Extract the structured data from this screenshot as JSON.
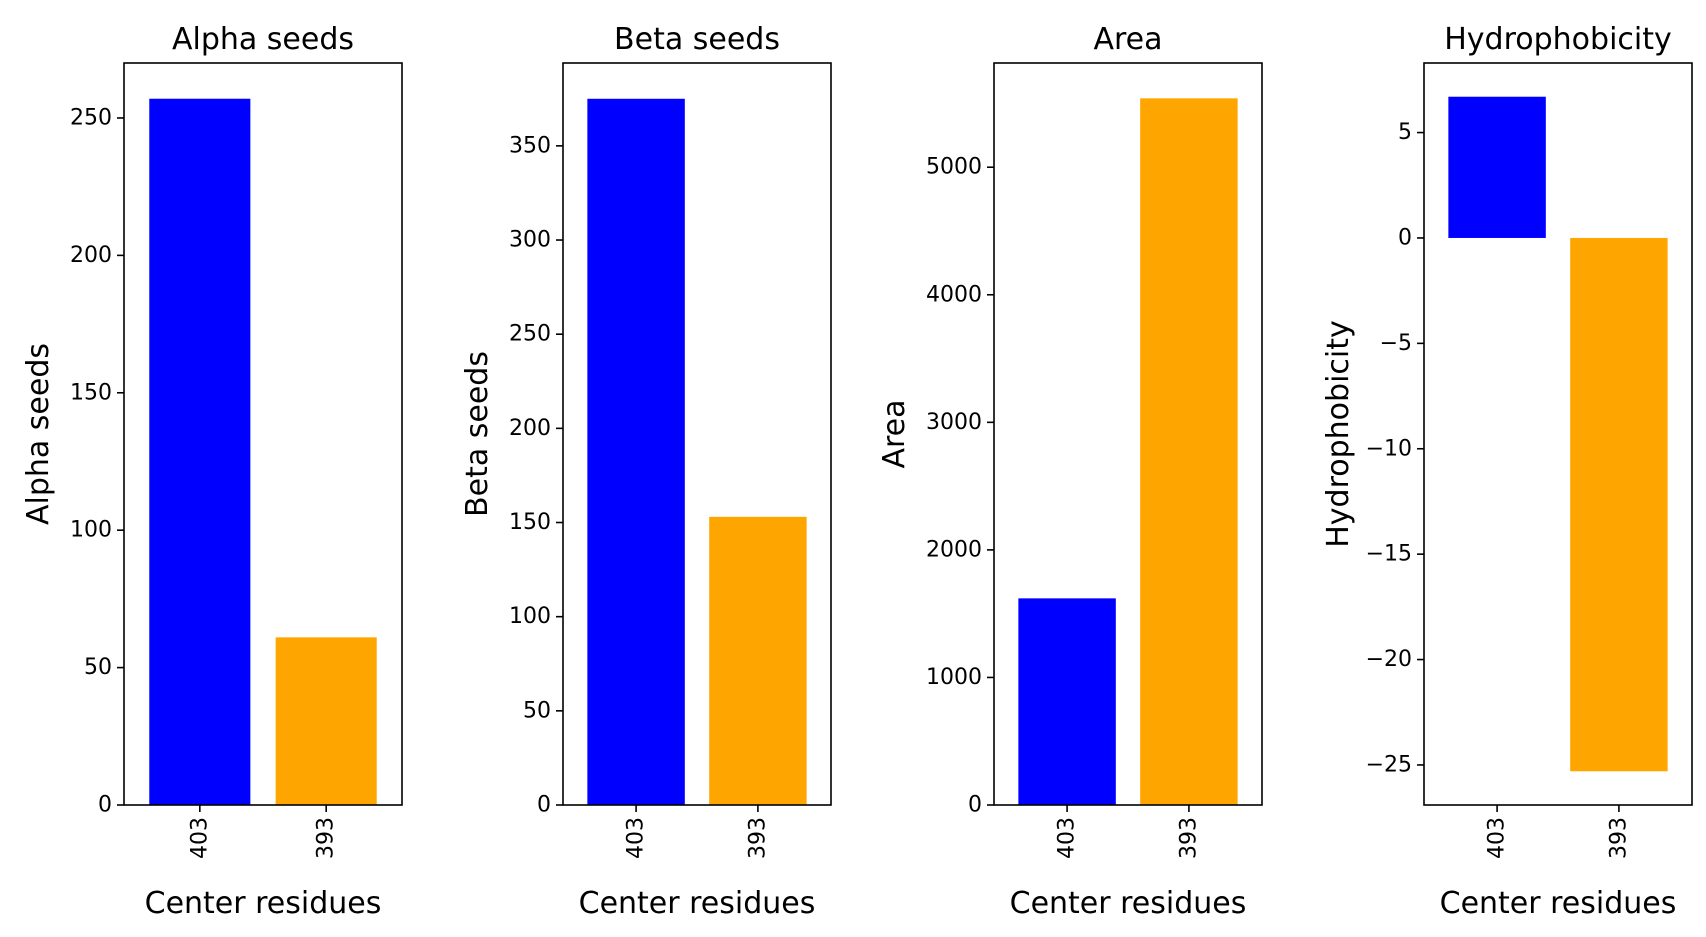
{
  "chart_data": [
    {
      "type": "bar",
      "title": "Alpha seeds",
      "xlabel": "Center residues",
      "ylabel": "Alpha seeds",
      "categories": [
        "403",
        "393"
      ],
      "values": [
        257,
        61
      ],
      "colors": [
        "#0000ff",
        "#ffa500"
      ],
      "ylim": [
        0,
        270
      ],
      "yticks": [
        0,
        50,
        100,
        150,
        200,
        250
      ],
      "ytick_labels": [
        "0",
        "50",
        "100",
        "150",
        "200",
        "250"
      ],
      "xtick_rotation": "vertical",
      "grid": false,
      "legend": "none"
    },
    {
      "type": "bar",
      "title": "Beta seeds",
      "xlabel": "Center residues",
      "ylabel": "Beta seeds",
      "categories": [
        "403",
        "393"
      ],
      "values": [
        375,
        153
      ],
      "colors": [
        "#0000ff",
        "#ffa500"
      ],
      "ylim": [
        0,
        394
      ],
      "yticks": [
        0,
        50,
        100,
        150,
        200,
        250,
        300,
        350
      ],
      "ytick_labels": [
        "0",
        "50",
        "100",
        "150",
        "200",
        "250",
        "300",
        "350"
      ],
      "xtick_rotation": "vertical",
      "grid": false,
      "legend": "none"
    },
    {
      "type": "bar",
      "title": "Area",
      "xlabel": "Center residues",
      "ylabel": "Area",
      "categories": [
        "403",
        "393"
      ],
      "values": [
        1620,
        5540
      ],
      "colors": [
        "#0000ff",
        "#ffa500"
      ],
      "ylim": [
        0,
        5817
      ],
      "yticks": [
        0,
        1000,
        2000,
        3000,
        4000,
        5000
      ],
      "ytick_labels": [
        "0",
        "1000",
        "2000",
        "3000",
        "4000",
        "5000"
      ],
      "xtick_rotation": "vertical",
      "grid": false,
      "legend": "none"
    },
    {
      "type": "bar",
      "title": "Hydrophobicity",
      "xlabel": "Center residues",
      "ylabel": "Hydrophobicity",
      "categories": [
        "403",
        "393"
      ],
      "values": [
        6.7,
        -25.3
      ],
      "colors": [
        "#0000ff",
        "#ffa500"
      ],
      "ylim": [
        -26.9,
        8.3
      ],
      "yticks": [
        -25,
        -20,
        -15,
        -10,
        -5,
        0,
        5
      ],
      "ytick_labels": [
        "−25",
        "−20",
        "−15",
        "−10",
        "−5",
        "0",
        "5"
      ],
      "xtick_rotation": "vertical",
      "grid": false,
      "legend": "none"
    }
  ]
}
